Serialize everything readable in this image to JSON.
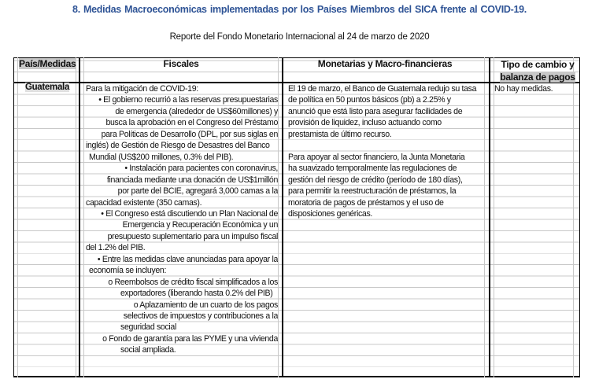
{
  "title": "8.   Medidas Macroeconómicas implementadas por los Países Miembros del SICA frente al COVID-19.",
  "subtitle": "Reporte del Fondo Monetario Internacional al 24 de marzo de 2020",
  "headers": {
    "country": "País/Medidas",
    "fiscal": "Fiscales",
    "monetary": "Monetarias y Macro-financieras",
    "exchange_line1": "Tipo de cambio y",
    "exchange_line2": "balanza de pagos"
  },
  "rows": [
    {
      "country": "Guatemala",
      "fiscal": [
        "Para la mitigación de COVID-19:",
        "• El gobierno recurrió a las reservas presupuestarias",
        "de emergencia (alrededor de US$60millones) y",
        "busca la aprobación en el Congreso del Préstamo",
        "para Políticas de Desarrollo (DPL, por sus siglas en",
        "inglés) de Gestión de Riesgo de Desastres del Banco",
        "Mundial (US$200 millones, 0.3% del PIB).",
        "• Instalación para pacientes con coronavirus,",
        "financiada mediante una donación de US$1millón",
        "por parte del BCIE, agregará 3,000 camas a la",
        "capacidad existente (350 camas).",
        "• El Congreso está discutiendo un Plan Nacional de",
        "Emergencia y Recuperación Económica y un",
        "presupuesto suplementario para un impulso fiscal",
        "del 1.2% del PIB.",
        "• Entre las medidas clave anunciadas para apoyar la",
        "economía se incluyen:",
        "o   Reembolsos de crédito fiscal simplificados a los",
        "exportadores (liberando hasta 0.2% del PIB)",
        "o   Aplazamiento de un cuarto de los pagos",
        "selectivos de impuestos y contribuciones a la",
        "seguridad social",
        "o   Fondo de garantía para las PYME y una vivienda",
        "social ampliada."
      ],
      "monetary": [
        "El 19 de marzo, el Banco de Guatemala redujo su tasa",
        "de política en 50 puntos básicos (pb) a 2.25% y",
        "anunció que está listo para asegurar facilidades de",
        "provisión de liquidez, incluso actuando como",
        "prestamista de último recurso.",
        "",
        "Para apoyar al sector financiero, la Junta Monetaria",
        "ha suavizado temporalmente las regulaciones de",
        "gestión del riesgo de crédito (período de 180 días),",
        "para permitir la reestructuración de préstamos, la",
        "moratoria de pagos de préstamos y el uso de",
        "disposiciones genéricas."
      ],
      "exchange": [
        "No hay medidas."
      ]
    }
  ],
  "colors": {
    "title": "#2f5496",
    "header_shade": "#c8c8c8"
  }
}
